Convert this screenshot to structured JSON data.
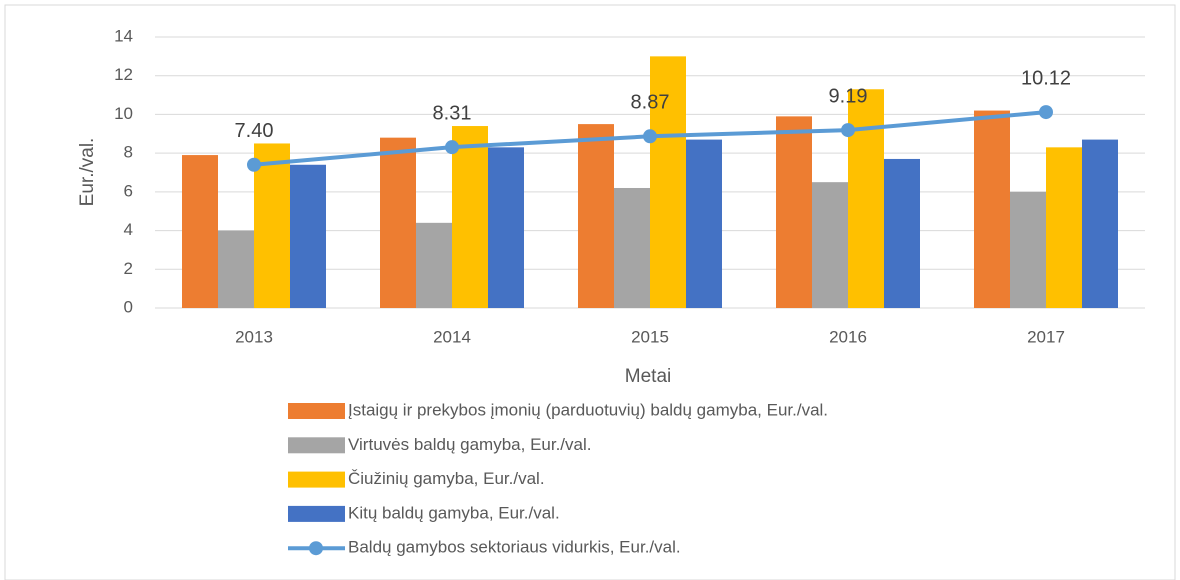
{
  "chart_data": {
    "type": "bar",
    "categories": [
      "2013",
      "2014",
      "2015",
      "2016",
      "2017"
    ],
    "series": [
      {
        "name": "Įstaigų ir prekybos įmonių (parduotuvių) baldų gamyba, Eur./val.",
        "color": "#ed7d31",
        "values": [
          7.9,
          8.8,
          9.5,
          9.9,
          10.2
        ]
      },
      {
        "name": "Virtuvės baldų gamyba, Eur./val.",
        "color": "#a5a5a5",
        "values": [
          4.0,
          4.4,
          6.2,
          6.5,
          6.0
        ]
      },
      {
        "name": "Čiužinių gamyba, Eur./val.",
        "color": "#ffc000",
        "values": [
          8.5,
          9.4,
          13.0,
          11.3,
          8.3
        ]
      },
      {
        "name": "Kitų baldų gamyba, Eur./val.",
        "color": "#4472c4",
        "values": [
          7.4,
          8.3,
          8.7,
          7.7,
          8.7
        ]
      },
      {
        "name": "Baldų gamybos sektoriaus vidurkis, Eur./val.",
        "color": "#5b9bd5",
        "type": "line",
        "values": [
          7.4,
          8.31,
          8.87,
          9.19,
          10.12
        ],
        "value_labels": [
          "7.40",
          "8.31",
          "8.87",
          "9.19",
          "10.12"
        ]
      }
    ],
    "xlabel": "Metai",
    "ylabel": "Eur./val.",
    "ylim": [
      0,
      14
    ],
    "yticks": [
      0,
      2,
      4,
      6,
      8,
      10,
      12,
      14
    ],
    "grid": true
  }
}
